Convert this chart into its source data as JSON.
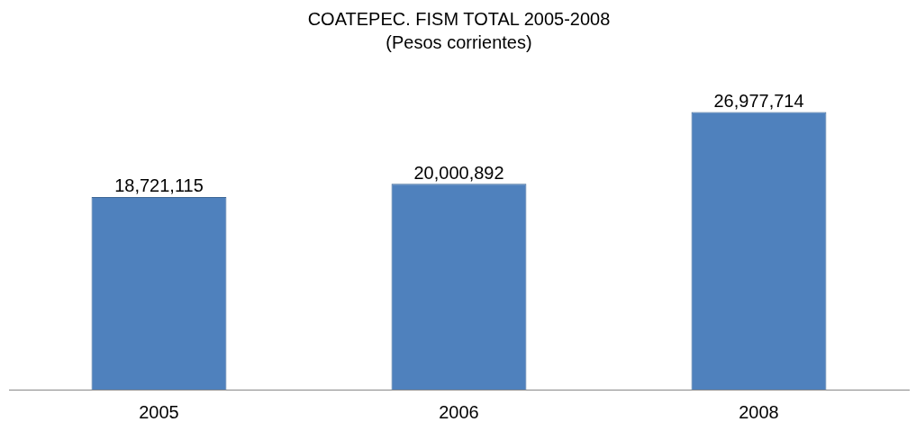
{
  "chart_data": {
    "type": "bar",
    "title": "COATEPEC. FISM TOTAL 2005-2008",
    "subtitle": "(Pesos corrientes)",
    "categories": [
      "2005",
      "2006",
      "2008"
    ],
    "values": [
      18721115,
      20000892,
      26977714
    ],
    "value_labels": [
      "18,721,115",
      "20,000,892",
      "26,977,714"
    ],
    "color": "#4f81bd",
    "grid": false,
    "legend": false
  }
}
